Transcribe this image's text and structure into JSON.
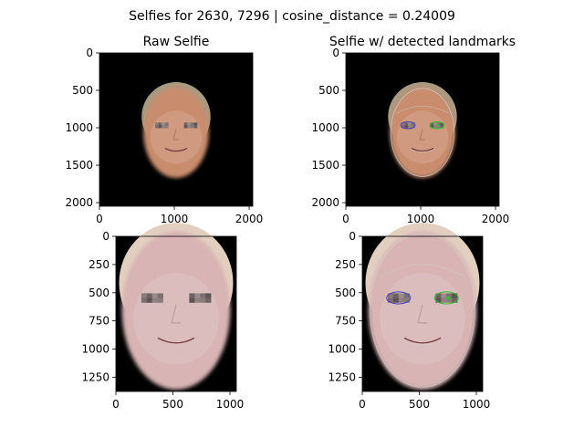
{
  "figure": {
    "suptitle": "Selfies for 2630, 7296 | cosine_distance = 0.24009"
  },
  "chart_data": [
    {
      "type": "image",
      "title": "Raw Selfie",
      "xlim": [
        0,
        2048
      ],
      "ylim": [
        2048,
        0
      ],
      "xticks": [
        0,
        1000,
        2000
      ],
      "yticks": [
        0,
        500,
        1000,
        1500,
        2000
      ],
      "image_content": "face",
      "landmarks_overlay": false,
      "face": {
        "center": [
          1024,
          1030
        ],
        "radius": [
          460,
          640
        ],
        "skin": "#c98d6e",
        "hair": "#a89a80"
      }
    },
    {
      "type": "image",
      "title": "Selfie w/ detected landmarks",
      "xlim": [
        0,
        2048
      ],
      "ylim": [
        2048,
        0
      ],
      "xticks": [
        0,
        1000,
        2000
      ],
      "yticks": [
        0,
        500,
        1000,
        1500,
        2000
      ],
      "image_content": "face",
      "landmarks_overlay": true,
      "face": {
        "center": [
          1024,
          1030
        ],
        "radius": [
          460,
          640
        ],
        "skin": "#c98d6e",
        "hair": "#a89a80"
      }
    },
    {
      "type": "image",
      "title": "",
      "xlim": [
        0,
        1056
      ],
      "ylim": [
        1376,
        0
      ],
      "xticks": [
        0,
        500,
        1000
      ],
      "yticks": [
        0,
        250,
        500,
        750,
        1000,
        1250
      ],
      "image_content": "face",
      "landmarks_overlay": false,
      "face": {
        "center": [
          528,
          620
        ],
        "radius": [
          500,
          740
        ],
        "skin": "#d8b4b4",
        "hair": "#e2cfc0"
      }
    },
    {
      "type": "image",
      "title": "",
      "xlim": [
        0,
        1056
      ],
      "ylim": [
        1376,
        0
      ],
      "xticks": [
        0,
        500,
        1000
      ],
      "yticks": [
        0,
        250,
        500,
        750,
        1000,
        1250
      ],
      "image_content": "face",
      "landmarks_overlay": true,
      "face": {
        "center": [
          528,
          620
        ],
        "radius": [
          500,
          740
        ],
        "skin": "#d8b4b4",
        "hair": "#e2cfc0"
      }
    }
  ],
  "colors": {
    "background": "#000000",
    "landmark_left_eye": "#4040c0",
    "landmark_right_eye": "#30c030",
    "landmark_contour": "#d0d0d0"
  }
}
